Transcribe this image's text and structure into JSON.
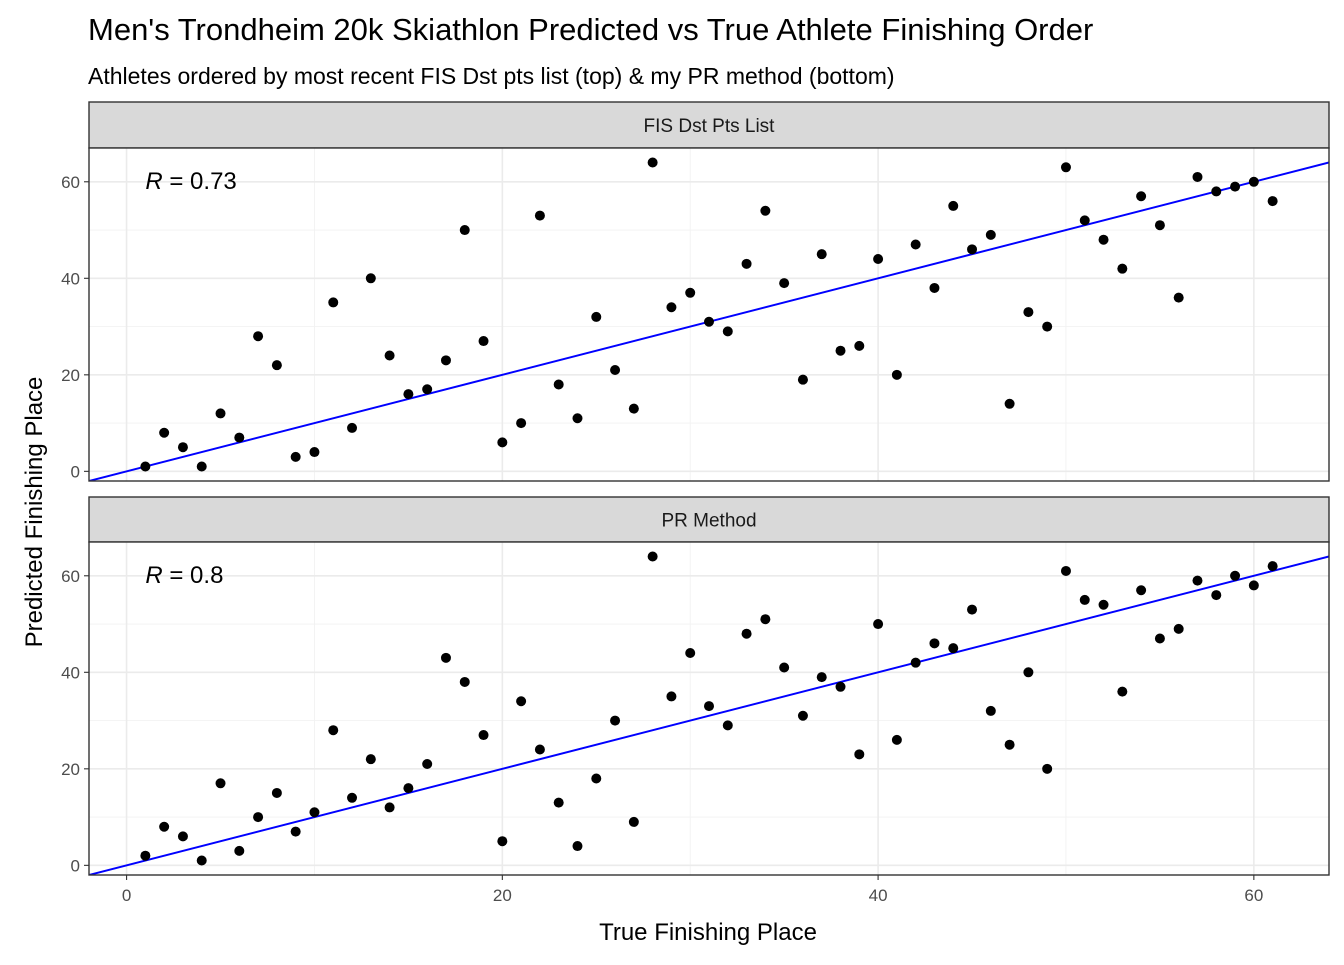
{
  "chart_data": {
    "type": "scatter",
    "title": "Men's Trondheim 20k Skiathlon Predicted vs True Athlete Finishing Order",
    "subtitle": "Athletes ordered by most recent FIS Dst pts list (top) & my PR method (bottom)",
    "xlabel": "True Finishing Place",
    "ylabel": "Predicted Finishing Place",
    "xlim": [
      -2,
      64
    ],
    "ylim": [
      -2,
      67
    ],
    "x_ticks": [
      0,
      20,
      40,
      60
    ],
    "y_ticks": [
      0,
      20,
      40,
      60
    ],
    "grid": true,
    "colors": {
      "points": "#000000",
      "fit_line": "#0000ff",
      "strip": "#d9d9d9"
    },
    "panels": [
      {
        "strip_label": "FIS Dst Pts List",
        "r_symbol": "R",
        "r_value": "= 0.73",
        "fit_line": {
          "intercept": 0,
          "slope": 1
        },
        "points": [
          [
            1,
            1
          ],
          [
            2,
            8
          ],
          [
            3,
            5
          ],
          [
            4,
            1
          ],
          [
            5,
            12
          ],
          [
            6,
            7
          ],
          [
            7,
            28
          ],
          [
            8,
            22
          ],
          [
            9,
            3
          ],
          [
            10,
            4
          ],
          [
            11,
            35
          ],
          [
            12,
            9
          ],
          [
            13,
            40
          ],
          [
            14,
            24
          ],
          [
            15,
            16
          ],
          [
            16,
            17
          ],
          [
            17,
            23
          ],
          [
            18,
            50
          ],
          [
            19,
            27
          ],
          [
            20,
            6
          ],
          [
            21,
            10
          ],
          [
            22,
            53
          ],
          [
            23,
            18
          ],
          [
            24,
            11
          ],
          [
            25,
            32
          ],
          [
            26,
            21
          ],
          [
            27,
            13
          ],
          [
            28,
            64
          ],
          [
            29,
            34
          ],
          [
            30,
            37
          ],
          [
            31,
            31
          ],
          [
            32,
            29
          ],
          [
            33,
            43
          ],
          [
            34,
            54
          ],
          [
            35,
            39
          ],
          [
            36,
            19
          ],
          [
            37,
            45
          ],
          [
            38,
            25
          ],
          [
            39,
            26
          ],
          [
            40,
            44
          ],
          [
            41,
            20
          ],
          [
            42,
            47
          ],
          [
            43,
            38
          ],
          [
            44,
            55
          ],
          [
            45,
            46
          ],
          [
            46,
            49
          ],
          [
            47,
            14
          ],
          [
            48,
            33
          ],
          [
            49,
            30
          ],
          [
            50,
            63
          ],
          [
            51,
            52
          ],
          [
            52,
            48
          ],
          [
            53,
            42
          ],
          [
            54,
            57
          ],
          [
            55,
            51
          ],
          [
            56,
            36
          ],
          [
            57,
            61
          ],
          [
            58,
            58
          ],
          [
            59,
            59
          ],
          [
            60,
            60
          ],
          [
            61,
            56
          ]
        ]
      },
      {
        "strip_label": "PR Method",
        "r_symbol": "R",
        "r_value": "= 0.8",
        "fit_line": {
          "intercept": 0,
          "slope": 1
        },
        "points": [
          [
            1,
            2
          ],
          [
            2,
            8
          ],
          [
            3,
            6
          ],
          [
            4,
            1
          ],
          [
            5,
            17
          ],
          [
            6,
            3
          ],
          [
            7,
            10
          ],
          [
            8,
            15
          ],
          [
            9,
            7
          ],
          [
            10,
            11
          ],
          [
            11,
            28
          ],
          [
            12,
            14
          ],
          [
            13,
            22
          ],
          [
            14,
            12
          ],
          [
            15,
            16
          ],
          [
            16,
            21
          ],
          [
            17,
            43
          ],
          [
            18,
            38
          ],
          [
            19,
            27
          ],
          [
            20,
            5
          ],
          [
            21,
            34
          ],
          [
            22,
            24
          ],
          [
            23,
            13
          ],
          [
            24,
            4
          ],
          [
            25,
            18
          ],
          [
            26,
            30
          ],
          [
            27,
            9
          ],
          [
            28,
            64
          ],
          [
            29,
            35
          ],
          [
            30,
            44
          ],
          [
            31,
            33
          ],
          [
            32,
            29
          ],
          [
            33,
            48
          ],
          [
            34,
            51
          ],
          [
            35,
            41
          ],
          [
            36,
            31
          ],
          [
            37,
            39
          ],
          [
            38,
            37
          ],
          [
            39,
            23
          ],
          [
            40,
            50
          ],
          [
            41,
            26
          ],
          [
            42,
            42
          ],
          [
            43,
            46
          ],
          [
            44,
            45
          ],
          [
            45,
            53
          ],
          [
            46,
            32
          ],
          [
            47,
            25
          ],
          [
            48,
            40
          ],
          [
            49,
            20
          ],
          [
            50,
            61
          ],
          [
            51,
            55
          ],
          [
            52,
            54
          ],
          [
            53,
            36
          ],
          [
            54,
            57
          ],
          [
            55,
            47
          ],
          [
            56,
            49
          ],
          [
            57,
            59
          ],
          [
            58,
            56
          ],
          [
            59,
            60
          ],
          [
            60,
            58
          ],
          [
            61,
            62
          ]
        ]
      }
    ]
  }
}
